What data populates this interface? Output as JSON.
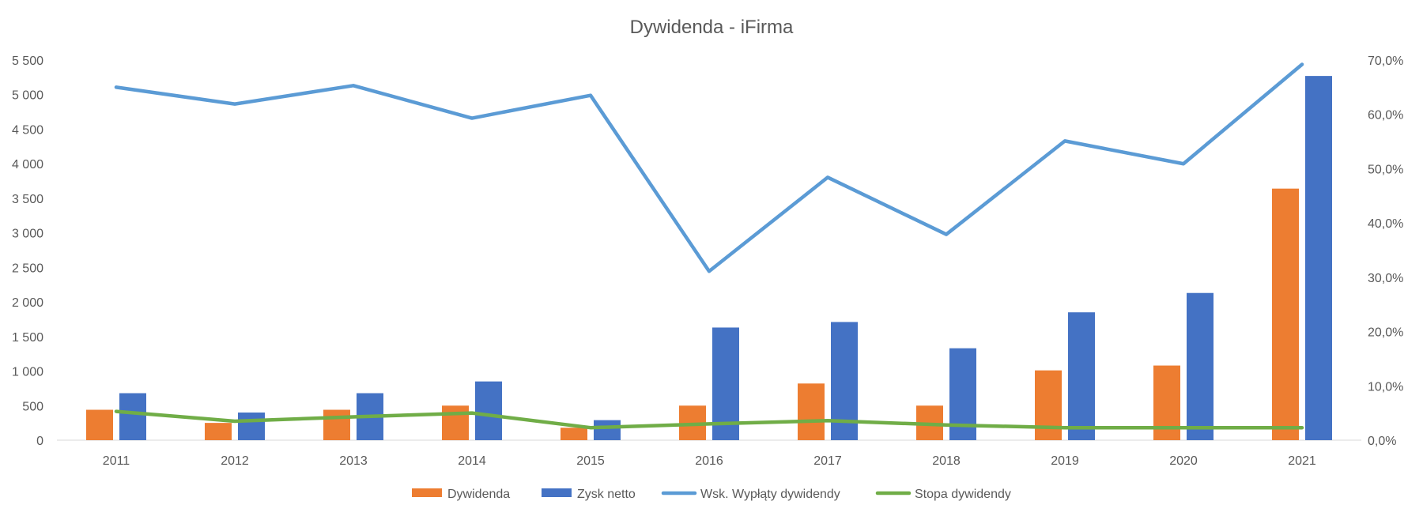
{
  "chart_data": {
    "type": "bar",
    "title": "Dywidenda - iFirma",
    "categories": [
      "2011",
      "2012",
      "2013",
      "2014",
      "2015",
      "2016",
      "2017",
      "2018",
      "2019",
      "2020",
      "2021"
    ],
    "y_left": {
      "min": 0,
      "max": 5500,
      "ticks": [
        0,
        500,
        1000,
        1500,
        2000,
        2500,
        3000,
        3500,
        4000,
        4500,
        5000,
        5500
      ],
      "tick_labels": [
        "0",
        "500",
        "1 000",
        "1 500",
        "2 000",
        "2 500",
        "3 000",
        "3 500",
        "4 000",
        "4 500",
        "5 000",
        "5 500"
      ]
    },
    "y_right": {
      "min": 0,
      "max": 70,
      "ticks": [
        0,
        10,
        20,
        30,
        40,
        50,
        60,
        70
      ],
      "tick_labels": [
        "0,0%",
        "10,0%",
        "20,0%",
        "30,0%",
        "40,0%",
        "50,0%",
        "60,0%",
        "70,0%"
      ]
    },
    "grid": false,
    "legend_position": "bottom",
    "series": [
      {
        "name": "Dywidenda",
        "type": "bar",
        "axis": "left",
        "color": "#ED7D31",
        "values": [
          440,
          250,
          440,
          500,
          180,
          500,
          820,
          500,
          1010,
          1080,
          3640
        ]
      },
      {
        "name": "Zysk netto",
        "type": "bar",
        "axis": "left",
        "color": "#4472C4",
        "values": [
          680,
          400,
          680,
          850,
          290,
          1630,
          1710,
          1330,
          1850,
          2130,
          5270
        ]
      },
      {
        "name": "Wsk. Wypłąty dywidendy",
        "type": "line",
        "axis": "right",
        "color": "#5B9BD5",
        "values": [
          65.0,
          61.9,
          65.3,
          59.3,
          63.5,
          31.1,
          48.4,
          37.9,
          55.1,
          50.9,
          69.2
        ]
      },
      {
        "name": "Stopa dywidendy",
        "type": "line",
        "axis": "right",
        "color": "#70AD47",
        "values": [
          5.3,
          3.5,
          4.3,
          5.0,
          2.3,
          3.0,
          3.6,
          2.8,
          2.3,
          2.3,
          2.3
        ]
      }
    ]
  }
}
